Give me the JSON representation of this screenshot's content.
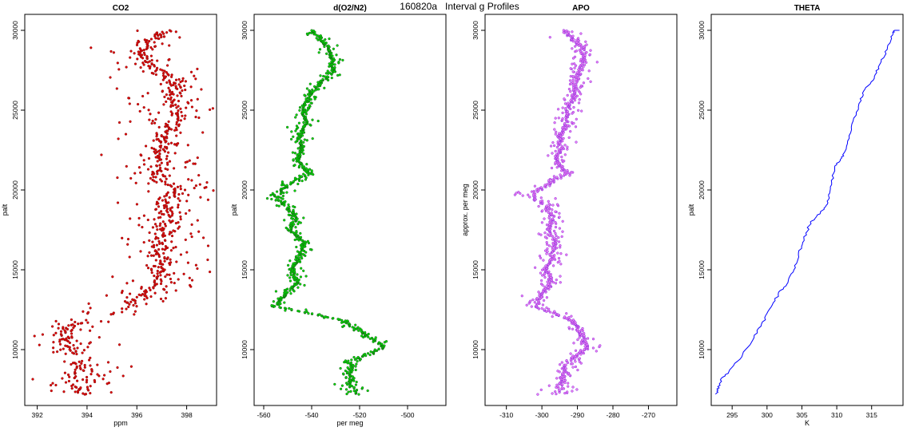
{
  "figure_title": "160820a   Interval g Profiles",
  "chart_data": [
    {
      "type": "scatter",
      "title": "CO2",
      "xlabel": "ppm",
      "ylabel": "palt",
      "xlim": [
        391.5,
        399.2
      ],
      "ylim": [
        6500,
        31000
      ],
      "xticks": [
        392,
        394,
        396,
        398
      ],
      "yticks": [
        10000,
        15000,
        20000,
        25000,
        30000
      ],
      "color": "#e00000",
      "outline": "#8b1a1a",
      "profile": [
        [
          394.0,
          7200
        ],
        [
          393.6,
          7600
        ],
        [
          393.3,
          8000
        ],
        [
          393.8,
          8600
        ],
        [
          393.4,
          9500
        ],
        [
          393.3,
          10300
        ],
        [
          393.0,
          11000
        ],
        [
          393.5,
          11600
        ],
        [
          395.0,
          12200
        ],
        [
          395.7,
          12800
        ],
        [
          396.3,
          13400
        ],
        [
          396.9,
          14200
        ],
        [
          396.9,
          15100
        ],
        [
          397.1,
          15900
        ],
        [
          396.9,
          16700
        ],
        [
          397.1,
          17500
        ],
        [
          397.3,
          18300
        ],
        [
          397.1,
          19100
        ],
        [
          397.7,
          20000
        ],
        [
          396.9,
          20800
        ],
        [
          397.1,
          21600
        ],
        [
          396.8,
          22400
        ],
        [
          397.2,
          23200
        ],
        [
          397.4,
          24000
        ],
        [
          397.6,
          24800
        ],
        [
          397.4,
          25600
        ],
        [
          397.6,
          26400
        ],
        [
          397.0,
          27200
        ],
        [
          396.6,
          27900
        ],
        [
          396.1,
          28600
        ],
        [
          396.4,
          29300
        ],
        [
          397.0,
          29800
        ],
        [
          397.4,
          30000
        ]
      ],
      "spread": 1.5,
      "thinLevels": [
        9500,
        12000,
        12600
      ],
      "spreadOverrides": [
        [
          7000,
          8300,
          2.1
        ]
      ],
      "seed": 11
    },
    {
      "type": "scatter",
      "title": "d(O2/N2)",
      "xlabel": "per meg",
      "ylabel": "palt",
      "xlim": [
        -564,
        -484
      ],
      "ylim": [
        6500,
        31000
      ],
      "xticks": [
        -560,
        -540,
        -520,
        -500
      ],
      "yticks": [
        10000,
        15000,
        20000,
        25000,
        30000
      ],
      "color": "#00e000",
      "outline": "#1a5a1a",
      "profile": [
        [
          -521,
          7200
        ],
        [
          -523,
          7700
        ],
        [
          -524,
          8300
        ],
        [
          -524,
          9200
        ],
        [
          -510,
          10200
        ],
        [
          -518,
          11000
        ],
        [
          -526,
          11800
        ],
        [
          -555,
          12700
        ],
        [
          -551,
          13500
        ],
        [
          -546,
          14200
        ],
        [
          -548,
          15000
        ],
        [
          -545,
          15800
        ],
        [
          -543,
          16700
        ],
        [
          -549,
          17500
        ],
        [
          -547,
          18300
        ],
        [
          -551,
          19100
        ],
        [
          -555,
          19700
        ],
        [
          -549,
          20400
        ],
        [
          -541,
          21100
        ],
        [
          -546,
          21800
        ],
        [
          -544,
          22600
        ],
        [
          -545,
          23400
        ],
        [
          -542,
          24200
        ],
        [
          -544,
          25000
        ],
        [
          -541,
          25800
        ],
        [
          -537,
          26600
        ],
        [
          -532,
          27300
        ],
        [
          -531,
          28100
        ],
        [
          -533,
          28900
        ],
        [
          -537,
          29600
        ],
        [
          -540,
          30000
        ]
      ],
      "spread": 3.5,
      "thinLevels": [],
      "spreadOverrides": [
        [
          7000,
          8300,
          5.5
        ],
        [
          19000,
          20000,
          7.0
        ]
      ],
      "seed": 23
    },
    {
      "type": "scatter",
      "title": "APO",
      "xlabel": "",
      "ylabel": "approx. per meg",
      "xlim": [
        -316,
        -262
      ],
      "ylim": [
        6500,
        31000
      ],
      "xticks": [
        -310,
        -300,
        -290,
        -280,
        -270
      ],
      "yticks": [
        10000,
        15000,
        20000,
        25000,
        30000
      ],
      "color": "#ee82ee",
      "outline": "#8a2be2",
      "profile": [
        [
          -295,
          7200
        ],
        [
          -295,
          7700
        ],
        [
          -294,
          8300
        ],
        [
          -293,
          9200
        ],
        [
          -287,
          10200
        ],
        [
          -289,
          11000
        ],
        [
          -291,
          11800
        ],
        [
          -302,
          12700
        ],
        [
          -300,
          13500
        ],
        [
          -297,
          14200
        ],
        [
          -299,
          15000
        ],
        [
          -297,
          15800
        ],
        [
          -296,
          16700
        ],
        [
          -298,
          17500
        ],
        [
          -297,
          18300
        ],
        [
          -299,
          19100
        ],
        [
          -303,
          19700
        ],
        [
          -298,
          20400
        ],
        [
          -293,
          21100
        ],
        [
          -296,
          21800
        ],
        [
          -295,
          22600
        ],
        [
          -295,
          23400
        ],
        [
          -293,
          24200
        ],
        [
          -293,
          25000
        ],
        [
          -291,
          25800
        ],
        [
          -290,
          26600
        ],
        [
          -290,
          27300
        ],
        [
          -288,
          28100
        ],
        [
          -289,
          28900
        ],
        [
          -292,
          29600
        ],
        [
          -293,
          30000
        ]
      ],
      "spread": 3.0,
      "thinLevels": [],
      "spreadOverrides": [
        [
          7000,
          8300,
          4.5
        ],
        [
          19000,
          20000,
          5.5
        ]
      ],
      "seed": 37
    },
    {
      "type": "line",
      "title": "THETA",
      "xlabel": "K",
      "ylabel": "palt",
      "xlim": [
        292,
        319.5
      ],
      "ylim": [
        6500,
        31000
      ],
      "xticks": [
        295,
        300,
        305,
        310,
        315
      ],
      "yticks": [
        10000,
        15000,
        20000,
        25000,
        30000
      ],
      "color": "#0000ff",
      "profile": [
        [
          292.7,
          7200
        ],
        [
          293.0,
          7600
        ],
        [
          293.4,
          8100
        ],
        [
          294.5,
          8600
        ],
        [
          296.0,
          9400
        ],
        [
          297.5,
          10300
        ],
        [
          298.7,
          11200
        ],
        [
          299.8,
          12000
        ],
        [
          300.8,
          12800
        ],
        [
          301.8,
          13600
        ],
        [
          303.0,
          14200
        ],
        [
          303.8,
          15000
        ],
        [
          304.4,
          15800
        ],
        [
          305.0,
          16600
        ],
        [
          305.6,
          17300
        ],
        [
          306.3,
          18000
        ],
        [
          307.0,
          18300
        ],
        [
          308.0,
          18700
        ],
        [
          308.7,
          19200
        ],
        [
          309.0,
          19800
        ],
        [
          309.3,
          20600
        ],
        [
          309.8,
          21500
        ],
        [
          310.6,
          22000
        ],
        [
          311.3,
          22400
        ],
        [
          311.8,
          23400
        ],
        [
          312.5,
          24500
        ],
        [
          313.4,
          25600
        ],
        [
          314.0,
          26300
        ],
        [
          315.4,
          27000
        ],
        [
          316.0,
          27700
        ],
        [
          316.8,
          28400
        ],
        [
          317.5,
          29200
        ],
        [
          318.0,
          29800
        ],
        [
          318.3,
          30000
        ]
      ]
    }
  ]
}
